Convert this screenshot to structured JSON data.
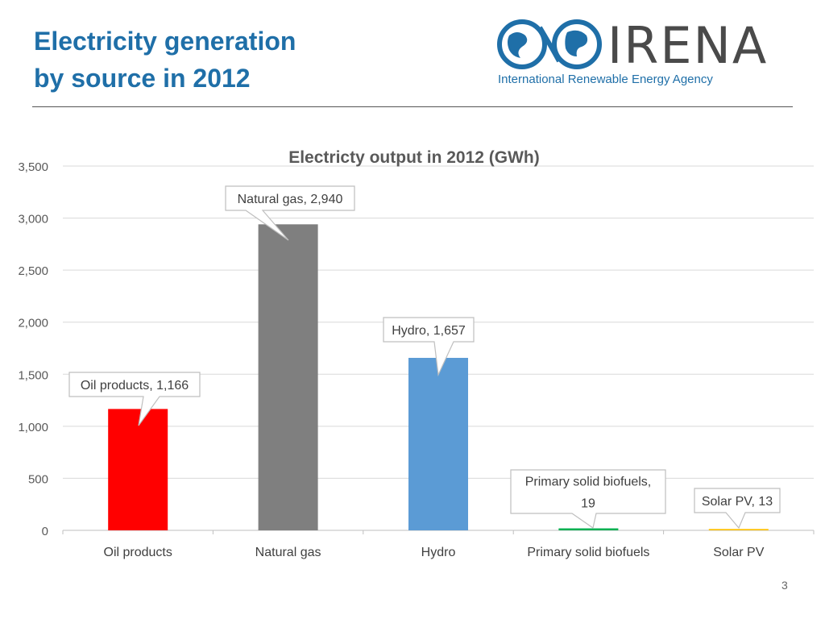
{
  "slide": {
    "title_line1": "Electricity generation",
    "title_line2": "by source in 2012",
    "page_number": "3"
  },
  "logo": {
    "wordmark": "IRENA",
    "tagline": "International Renewable Energy Agency",
    "icon": "globe-infinity-icon",
    "color_text": "#4a4a4a",
    "color_accent": "#1f6fa8"
  },
  "chart_data": {
    "type": "bar",
    "title": "Electricty output in 2012 (GWh)",
    "xlabel": "",
    "ylabel": "",
    "ylim": [
      0,
      3500
    ],
    "yticks": [
      "0",
      "500",
      "1,000",
      "1,500",
      "2,000",
      "2,500",
      "3,000",
      "3,500"
    ],
    "grid": true,
    "legend": "none",
    "categories": [
      "Oil products",
      "Natural gas",
      "Hydro",
      "Primary solid biofuels",
      "Solar PV"
    ],
    "values": [
      1166,
      2940,
      1657,
      19,
      13
    ],
    "colors": [
      "#ff0000",
      "#7f7f7f",
      "#5b9bd5",
      "#00b050",
      "#ffc000"
    ],
    "data_labels": [
      [
        "Oil products, 1,166"
      ],
      [
        "Natural gas, 2,940"
      ],
      [
        "Hydro, 1,657"
      ],
      [
        "Primary solid biofuels,",
        "19"
      ],
      [
        "Solar PV, 13"
      ]
    ]
  }
}
